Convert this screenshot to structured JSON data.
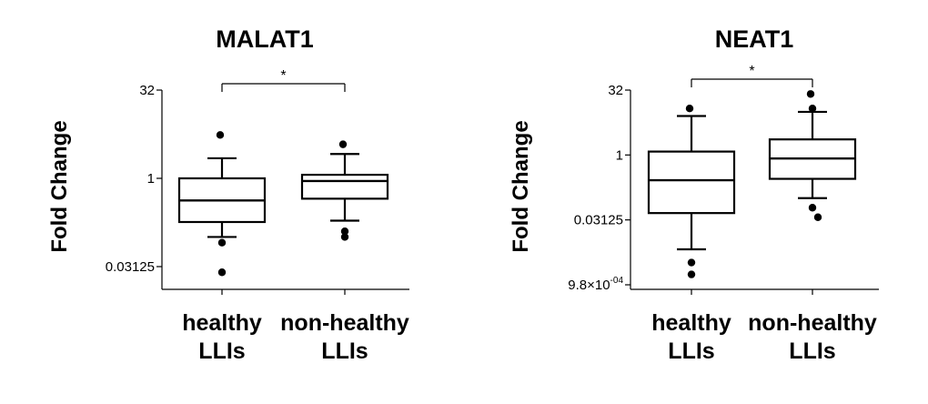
{
  "chart_data": [
    {
      "type": "box",
      "title": "MALAT1",
      "ylabel": "Fold Change",
      "yscale": "log2",
      "ylim": [
        0.0078125,
        64
      ],
      "yticks": [
        {
          "value": 32,
          "label": "32"
        },
        {
          "value": 1,
          "label": "1"
        },
        {
          "value": 0.03125,
          "label": "0.03125"
        }
      ],
      "categories": [
        {
          "line1": "healthy",
          "line2": "LLIs"
        },
        {
          "line1": "non-healthy",
          "line2": "LLIs"
        }
      ],
      "boxes": [
        {
          "whisker_low": 0.1,
          "q1": 0.18,
          "median": 0.42,
          "q3": 1.0,
          "whisker_high": 2.2,
          "outliers": [
            5.5,
            0.08,
            0.025
          ]
        },
        {
          "whisker_low": 0.19,
          "q1": 0.45,
          "median": 0.9,
          "q3": 1.15,
          "whisker_high": 2.6,
          "outliers": [
            3.8,
            0.125,
            0.1
          ]
        }
      ],
      "significance": {
        "label": "*",
        "between": [
          0,
          1
        ]
      }
    },
    {
      "type": "box",
      "title": "NEAT1",
      "ylabel": "Fold Change",
      "yscale": "log2",
      "ylim": [
        0.000977,
        40
      ],
      "yticks": [
        {
          "value": 32,
          "label": "32"
        },
        {
          "value": 1,
          "label": "1"
        },
        {
          "value": 0.03125,
          "label": "0.03125"
        },
        {
          "value": 0.000977,
          "label": "9.8×10",
          "sup": "-04"
        }
      ],
      "categories": [
        {
          "line1": "healthy",
          "line2": "LLIs"
        },
        {
          "line1": "non-healthy",
          "line2": "LLIs"
        }
      ],
      "boxes": [
        {
          "whisker_low": 0.0065,
          "q1": 0.045,
          "median": 0.26,
          "q3": 1.2,
          "whisker_high": 8.0,
          "outliers": [
            12,
            0.0032,
            0.0017
          ]
        },
        {
          "whisker_low": 0.1,
          "q1": 0.28,
          "median": 0.83,
          "q3": 2.3,
          "whisker_high": 10.0,
          "outliers": [
            26,
            12,
            0.06,
            0.036
          ]
        }
      ],
      "significance": {
        "label": "*",
        "between": [
          0,
          1
        ]
      }
    }
  ]
}
